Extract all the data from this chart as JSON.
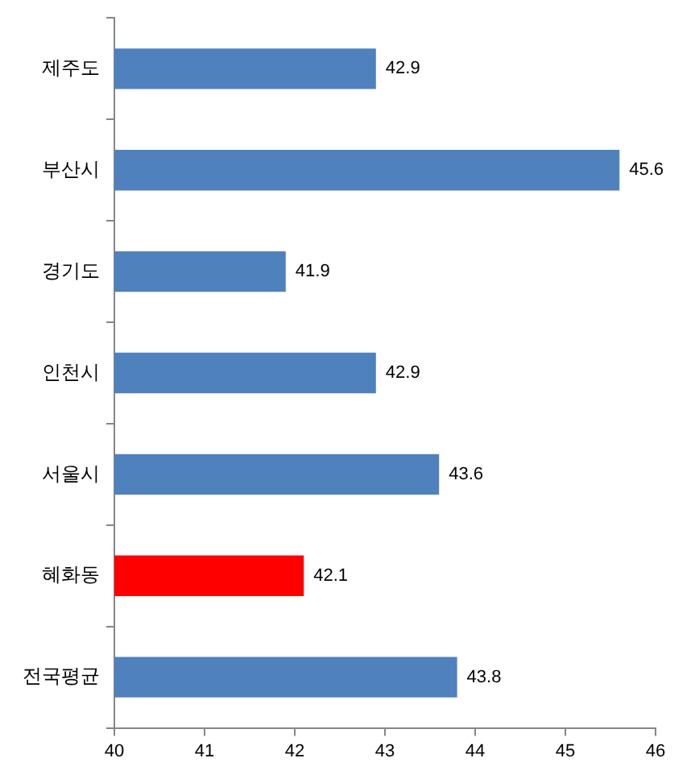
{
  "chart_data": {
    "type": "bar",
    "orientation": "horizontal",
    "categories": [
      "제주도",
      "부산시",
      "경기도",
      "인천시",
      "서울시",
      "혜화동",
      "전국평균"
    ],
    "values": [
      42.9,
      45.6,
      41.9,
      42.9,
      43.6,
      42.1,
      43.8
    ],
    "colors": [
      "#4f81bd",
      "#4f81bd",
      "#4f81bd",
      "#4f81bd",
      "#4f81bd",
      "#ff0000",
      "#4f81bd"
    ],
    "xlim": [
      40,
      46
    ],
    "xticks": [
      40,
      41,
      42,
      43,
      44,
      45,
      46
    ],
    "grid": false,
    "legend": false,
    "data_labels": true
  }
}
